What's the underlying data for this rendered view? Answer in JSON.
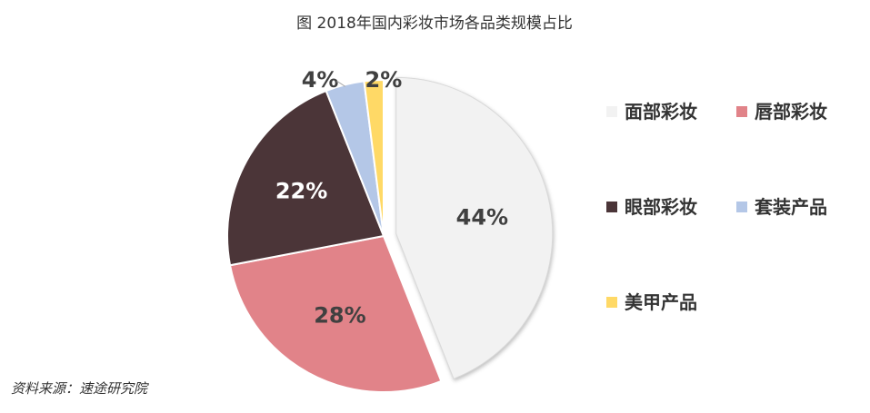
{
  "chart_data": {
    "type": "pie",
    "title": "图  2018年国内彩妆市场各品类规模占比",
    "categories": [
      "面部彩妆",
      "唇部彩妆",
      "眼部彩妆",
      "套装产品",
      "美甲产品"
    ],
    "values": [
      44,
      28,
      22,
      4,
      2
    ],
    "value_labels": [
      "44%",
      "28%",
      "22%",
      "4%",
      "2%"
    ],
    "unit": "%",
    "colors": [
      "#F2F2F2",
      "#E18389",
      "#4B3538",
      "#B4C7E7",
      "#FFD966"
    ],
    "label_colors": [
      "#404040",
      "#404040",
      "#FFFFFF",
      "#404040",
      "#404040"
    ],
    "exploded": [
      "面部彩妆"
    ],
    "legend_position": "right",
    "source": "资料来源：速途研究院"
  }
}
